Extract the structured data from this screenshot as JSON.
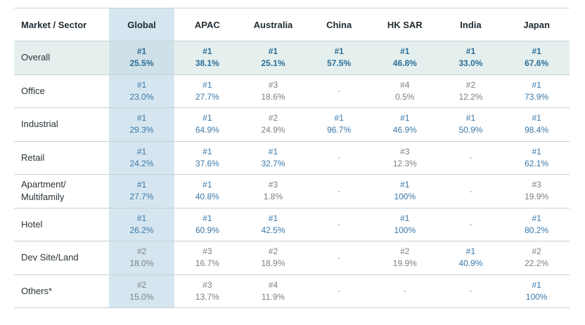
{
  "table": {
    "headers": [
      "Market / Sector",
      "Global",
      "APAC",
      "Australia",
      "China",
      "HK SAR",
      "India",
      "Japan"
    ],
    "rows": [
      {
        "label": "Overall",
        "cells": [
          {
            "rank": "#1",
            "share": "25.5%"
          },
          {
            "rank": "#1",
            "share": "38.1%"
          },
          {
            "rank": "#1",
            "share": "25.1%"
          },
          {
            "rank": "#1",
            "share": "57.5%"
          },
          {
            "rank": "#1",
            "share": "46.8%"
          },
          {
            "rank": "#1",
            "share": "33.0%"
          },
          {
            "rank": "#1",
            "share": "67.6%"
          }
        ]
      },
      {
        "label": "Office",
        "cells": [
          {
            "rank": "#1",
            "share": "23.0%"
          },
          {
            "rank": "#1",
            "share": "27.7%"
          },
          {
            "rank": "#3",
            "share": "18.6%"
          },
          {
            "dash": "-"
          },
          {
            "rank": "#4",
            "share": "0.5%"
          },
          {
            "rank": "#2",
            "share": "12.2%"
          },
          {
            "rank": "#1",
            "share": "73.9%"
          }
        ]
      },
      {
        "label": "Industrial",
        "cells": [
          {
            "rank": "#1",
            "share": "29.3%"
          },
          {
            "rank": "#1",
            "share": "64.9%"
          },
          {
            "rank": "#2",
            "share": "24.9%"
          },
          {
            "rank": "#1",
            "share": "96.7%"
          },
          {
            "rank": "#1",
            "share": "46.9%"
          },
          {
            "rank": "#1",
            "share": "50.9%"
          },
          {
            "rank": "#1",
            "share": "98.4%"
          }
        ]
      },
      {
        "label": "Retail",
        "cells": [
          {
            "rank": "#1",
            "share": "24.2%"
          },
          {
            "rank": "#1",
            "share": "37.6%"
          },
          {
            "rank": "#1",
            "share": "32.7%"
          },
          {
            "dash": "-"
          },
          {
            "rank": "#3",
            "share": "12.3%"
          },
          {
            "dash": "-"
          },
          {
            "rank": "#1",
            "share": "62.1%"
          }
        ]
      },
      {
        "label": "Apartment/\nMultifamily",
        "cells": [
          {
            "rank": "#1",
            "share": "27.7%"
          },
          {
            "rank": "#1",
            "share": "40.8%"
          },
          {
            "rank": "#3",
            "share": "1.8%"
          },
          {
            "dash": "-"
          },
          {
            "rank": "#1",
            "share": "100%"
          },
          {
            "dash": "-"
          },
          {
            "rank": "#3",
            "share": "19.9%"
          }
        ]
      },
      {
        "label": "Hotel",
        "cells": [
          {
            "rank": "#1",
            "share": "26.2%"
          },
          {
            "rank": "#1",
            "share": "60.9%"
          },
          {
            "rank": "#1",
            "share": "42.5%"
          },
          {
            "dash": "-"
          },
          {
            "rank": "#1",
            "share": "100%"
          },
          {
            "dash": "-"
          },
          {
            "rank": "#1",
            "share": "80.2%"
          }
        ]
      },
      {
        "label": "Dev Site/Land",
        "cells": [
          {
            "rank": "#2",
            "share": "18.0%"
          },
          {
            "rank": "#3",
            "share": "16.7%"
          },
          {
            "rank": "#2",
            "share": "18.9%"
          },
          {
            "dash": "-"
          },
          {
            "rank": "#2",
            "share": "19.9%"
          },
          {
            "rank": "#1",
            "share": "40.9%"
          },
          {
            "rank": "#2",
            "share": "22.2%"
          }
        ]
      },
      {
        "label": "Others*",
        "cells": [
          {
            "rank": "#2",
            "share": "15.0%"
          },
          {
            "rank": "#3",
            "share": "13.7%"
          },
          {
            "rank": "#4",
            "share": "11.9%"
          },
          {
            "dash": "-"
          },
          {
            "dash": "-"
          },
          {
            "dash": "-"
          },
          {
            "rank": "#1",
            "share": "100%"
          }
        ]
      }
    ]
  },
  "colors": {
    "leader_text": "#3978a9",
    "non_leader_text": "#7a7f83",
    "global_column_bg": "#d6e6f0",
    "overall_row_bg": "#e5f0ee"
  }
}
